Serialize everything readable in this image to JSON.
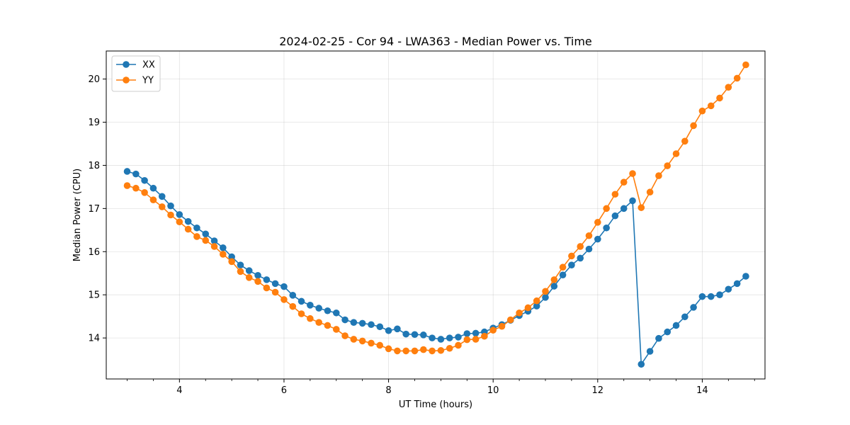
{
  "chart_data": {
    "type": "line",
    "title": "2024-02-25 - Cor 94 - LWA363 - Median Power vs. Time",
    "xlabel": "UT Time (hours)",
    "ylabel": "Median Power (CPU)",
    "xlim": [
      2.6,
      15.2
    ],
    "ylim": [
      13.05,
      20.65
    ],
    "xticks": [
      4,
      6,
      8,
      10,
      12,
      14
    ],
    "xtick_labels": [
      "4",
      "6",
      "8",
      "10",
      "12",
      "14"
    ],
    "yticks": [
      14,
      15,
      16,
      17,
      18,
      19,
      20
    ],
    "ytick_labels": [
      "14",
      "15",
      "16",
      "17",
      "18",
      "19",
      "20"
    ],
    "grid": true,
    "legend_position": "upper-left",
    "x": [
      3.0,
      3.167,
      3.333,
      3.5,
      3.667,
      3.833,
      4.0,
      4.167,
      4.333,
      4.5,
      4.667,
      4.833,
      5.0,
      5.167,
      5.333,
      5.5,
      5.667,
      5.833,
      6.0,
      6.167,
      6.333,
      6.5,
      6.667,
      6.833,
      7.0,
      7.167,
      7.333,
      7.5,
      7.667,
      7.833,
      8.0,
      8.167,
      8.333,
      8.5,
      8.667,
      8.833,
      9.0,
      9.167,
      9.333,
      9.5,
      9.667,
      9.833,
      10.0,
      10.167,
      10.333,
      10.5,
      10.667,
      10.833,
      11.0,
      11.167,
      11.333,
      11.5,
      11.667,
      11.833,
      12.0,
      12.167,
      12.333,
      12.5,
      12.667,
      12.833,
      13.0,
      13.167,
      13.333,
      13.5,
      13.667,
      13.833,
      14.0,
      14.167,
      14.333,
      14.5,
      14.667,
      14.833
    ],
    "series": [
      {
        "name": "XX",
        "color": "#1f77b4",
        "values": [
          17.86,
          17.8,
          17.65,
          17.47,
          17.28,
          17.06,
          16.86,
          16.7,
          16.55,
          16.41,
          16.25,
          16.09,
          15.88,
          15.69,
          15.56,
          15.45,
          15.35,
          15.26,
          15.19,
          14.99,
          14.85,
          14.76,
          14.69,
          14.63,
          14.58,
          14.42,
          14.36,
          14.34,
          14.31,
          14.26,
          14.17,
          14.21,
          14.09,
          14.08,
          14.07,
          14.0,
          13.97,
          14.0,
          14.02,
          14.1,
          14.11,
          14.14,
          14.23,
          14.31,
          14.41,
          14.52,
          14.62,
          14.74,
          14.94,
          15.2,
          15.46,
          15.69,
          15.85,
          16.06,
          16.29,
          16.55,
          16.83,
          17.0,
          17.18,
          13.39,
          13.69,
          13.99,
          14.14,
          14.29,
          14.49,
          14.71,
          14.96,
          14.96,
          15.0,
          15.13,
          15.26,
          15.43
        ]
      },
      {
        "name": "YY",
        "color": "#ff7f0e",
        "values": [
          17.53,
          17.47,
          17.37,
          17.2,
          17.04,
          16.85,
          16.69,
          16.52,
          16.35,
          16.26,
          16.12,
          15.94,
          15.77,
          15.54,
          15.4,
          15.31,
          15.16,
          15.06,
          14.89,
          14.73,
          14.56,
          14.45,
          14.36,
          14.29,
          14.2,
          14.05,
          13.97,
          13.93,
          13.88,
          13.83,
          13.75,
          13.7,
          13.7,
          13.7,
          13.73,
          13.7,
          13.71,
          13.76,
          13.83,
          13.96,
          13.97,
          14.04,
          14.18,
          14.27,
          14.42,
          14.58,
          14.7,
          14.86,
          15.08,
          15.35,
          15.64,
          15.9,
          16.12,
          16.37,
          16.68,
          17.0,
          17.33,
          17.61,
          17.81,
          17.02,
          17.38,
          17.76,
          17.99,
          18.27,
          18.56,
          18.92,
          19.26,
          19.38,
          19.56,
          19.81,
          20.02,
          20.33
        ]
      }
    ]
  }
}
